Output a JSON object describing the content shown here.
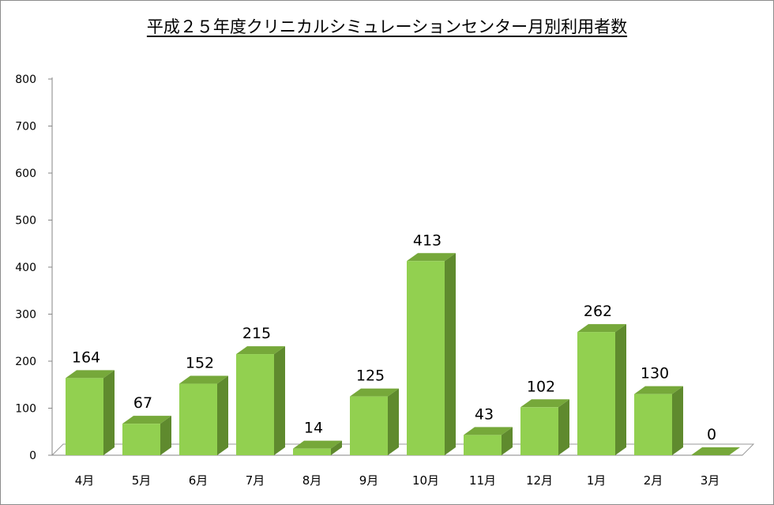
{
  "chart_data": {
    "type": "bar",
    "title": "平成２５年度クリニカルシミュレーションセンター月別利用者数",
    "categories": [
      "4月",
      "5月",
      "6月",
      "7月",
      "8月",
      "9月",
      "10月",
      "11月",
      "12月",
      "1月",
      "2月",
      "3月"
    ],
    "values": [
      164,
      67,
      152,
      215,
      14,
      125,
      413,
      43,
      102,
      262,
      130,
      0
    ],
    "yticks": [
      0,
      100,
      200,
      300,
      400,
      500,
      600,
      700,
      800
    ],
    "ylim": [
      0,
      800
    ],
    "xlabel": "",
    "ylabel": "",
    "grid": false,
    "legend": "none",
    "style": "3d-column",
    "colors": {
      "front": "#92d050",
      "side": "#5f8a2e",
      "top": "#76a83a"
    }
  }
}
